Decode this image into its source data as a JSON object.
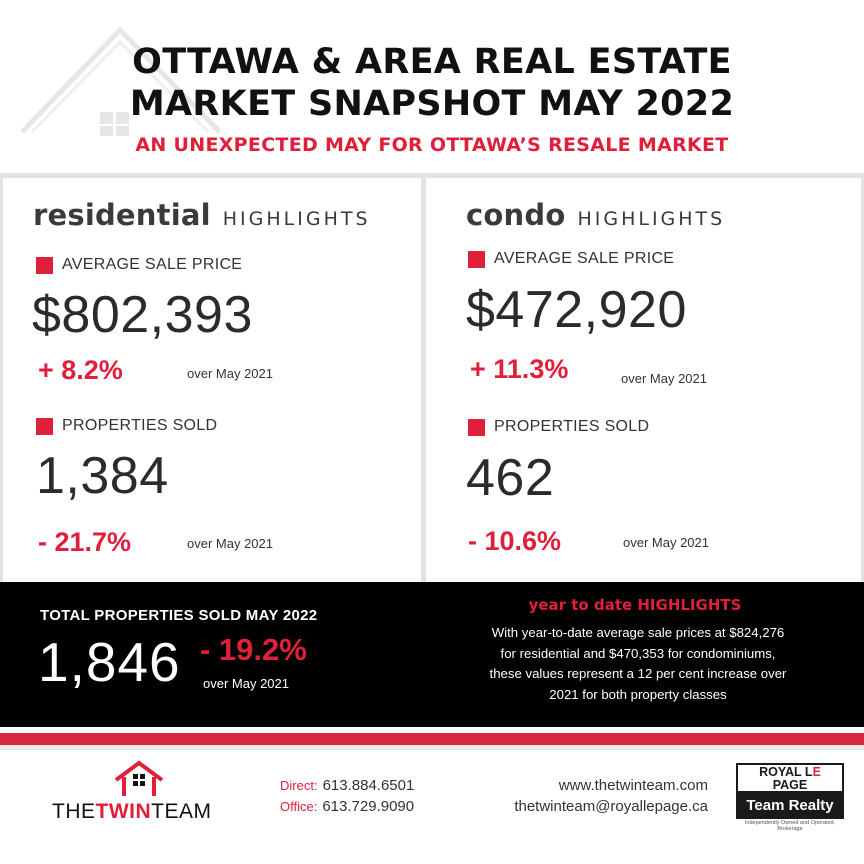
{
  "header": {
    "title_line1": "OTTAWA & AREA REAL ESTATE",
    "title_line2": "MARKET SNAPSHOT MAY 2022",
    "subtitle": "AN UNEXPECTED MAY FOR OTTAWA’S RESALE MARKET"
  },
  "residential": {
    "word": "residential",
    "highlights": "HIGHLIGHTS",
    "avg_label": "AVERAGE SALE PRICE",
    "avg_value": "$802,393",
    "avg_change": "+ 8.2%",
    "avg_over": "over May 2021",
    "sold_label": "PROPERTIES SOLD",
    "sold_value": "1,384",
    "sold_change": "- 21.7%",
    "sold_over": "over May 2021"
  },
  "condo": {
    "word": "condo",
    "highlights": "HIGHLIGHTS",
    "avg_label": "AVERAGE SALE PRICE",
    "avg_value": "$472,920",
    "avg_change": "+ 11.3%",
    "avg_over": "over May 2021",
    "sold_label": "PROPERTIES SOLD",
    "sold_value": "462",
    "sold_change": "- 10.6%",
    "sold_over": "over May 2021"
  },
  "total": {
    "label": "TOTAL PROPERTIES SOLD MAY 2022",
    "value": "1,846",
    "change": "- 19.2%",
    "over": "over May 2021"
  },
  "ytd": {
    "title": "year to date HIGHLIGHTS",
    "line1": "With year-to-date average sale prices at $824,276",
    "line2": "for residential and $470,353 for condominiums,",
    "line3": "these values represent a 12 per cent increase over",
    "line4": "2021 for both property classes"
  },
  "footer": {
    "logo_the": "THE",
    "logo_twin": "TWIN",
    "logo_team": "TEAM",
    "direct_label": "Direct:",
    "direct_phone": "613.884.6501",
    "office_label": "Office:",
    "office_phone": "613.729.9090",
    "website": "www.thetwinteam.com",
    "email": "thetwinteam@royallepage.ca",
    "brand_royal": "ROYAL L",
    "brand_e": "E",
    "brand_page": "PAGE",
    "brand_team": "Team Realty",
    "brand_tagline": "Independently Owned and Operated, Brokerage"
  },
  "colors": {
    "accent_red": "#e0203a",
    "band_black": "#000000",
    "text_dark": "#222222"
  }
}
